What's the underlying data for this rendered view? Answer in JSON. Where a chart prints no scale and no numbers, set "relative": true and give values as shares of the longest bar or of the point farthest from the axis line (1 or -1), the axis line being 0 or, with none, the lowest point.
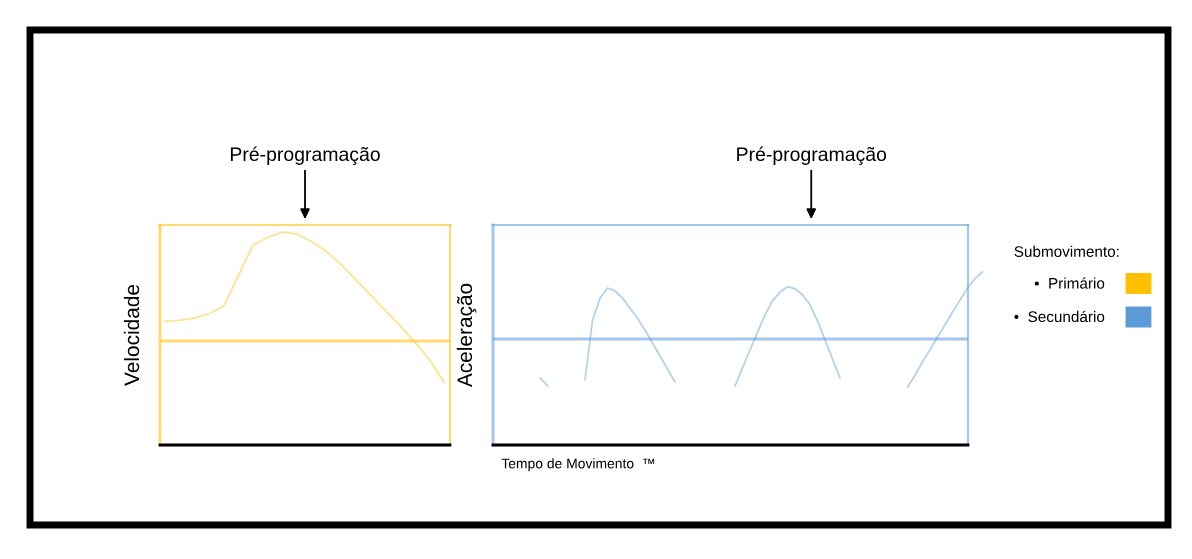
{
  "chart_data": [
    {
      "type": "line",
      "relative": true,
      "ylabel": "Velocidade",
      "annotations": [
        "Pré-programação"
      ],
      "legend": "right",
      "ref_lines": [
        {
          "axis": "y",
          "value": 0,
          "color": "#ffc000"
        }
      ],
      "categories": [
        null,
        null,
        null,
        null,
        null,
        null,
        null,
        null,
        null,
        null,
        null,
        null,
        null,
        null,
        null,
        null,
        null,
        null,
        null,
        null
      ],
      "series": [
        {
          "name": "•  Primário",
          "color": "#ffc000",
          "values": [
            0.18,
            0.19,
            0.21,
            0.25,
            0.32,
            0.6,
            0.88,
            0.95,
            1,
            0.98,
            0.91,
            0.82,
            0.7,
            0.56,
            0.42,
            0.28,
            0.14,
            -0.01,
            -0.17,
            -0.38
          ]
        }
      ]
    },
    {
      "type": "line",
      "relative": true,
      "ylabel": "Aceleração",
      "xlabel": "Tempo de Movimento  ™",
      "annotations": [
        "Pré-programação"
      ],
      "legend": "right",
      "legend_title": "Submovimento:",
      "ref_lines": [
        {
          "axis": "y",
          "value": 0,
          "color": "#5b9bd5"
        }
      ],
      "categories": [
        null,
        null,
        null,
        null,
        null,
        null,
        null,
        null,
        null,
        null,
        null,
        null,
        null,
        null,
        null,
        null,
        null,
        null,
        null,
        null,
        null,
        null,
        null,
        null,
        null,
        null,
        null,
        null,
        null,
        null,
        null,
        null,
        null,
        null,
        null,
        null,
        null,
        null,
        null,
        null,
        null,
        null,
        null,
        null,
        null,
        null,
        null,
        null,
        null,
        null,
        null,
        null,
        null,
        null,
        null,
        null,
        null,
        null,
        null,
        null,
        null
      ],
      "series": [
        {
          "color": "#5b9bd5",
          "values": [
            -0.58,
            -0.7,
            null,
            null,
            null,
            null,
            null,
            null,
            null,
            null,
            null,
            null,
            null,
            null,
            null,
            null,
            null,
            null,
            null,
            null,
            null,
            null,
            null,
            null,
            null,
            null,
            null,
            null,
            null,
            null,
            null,
            null,
            null,
            null,
            null,
            null,
            null,
            null,
            null,
            null,
            null,
            null,
            null,
            null,
            null,
            null,
            null,
            null,
            null,
            null,
            null,
            null,
            null,
            null,
            null,
            null,
            null,
            null,
            null,
            null,
            null
          ]
        },
        {
          "color": "#5b9bd5",
          "values": [
            null,
            null,
            null,
            null,
            null,
            null,
            -0.61,
            0.28,
            0.61,
            0.76,
            0.72,
            0.61,
            0.46,
            0.31,
            0.13,
            -0.06,
            -0.25,
            -0.45,
            -0.64,
            null,
            null,
            null,
            null,
            null,
            null,
            null,
            null,
            null,
            null,
            null,
            null,
            null,
            null,
            null,
            null,
            null,
            null,
            null,
            null,
            null,
            null,
            null,
            null,
            null,
            null,
            null,
            null,
            null,
            null,
            null,
            null,
            null,
            null,
            null,
            null,
            null,
            null,
            null,
            null,
            null,
            null
          ]
        },
        {
          "color": "#5b9bd5",
          "values": [
            null,
            null,
            null,
            null,
            null,
            null,
            null,
            null,
            null,
            null,
            null,
            null,
            null,
            null,
            null,
            null,
            null,
            null,
            null,
            null,
            null,
            null,
            null,
            null,
            null,
            null,
            -0.7,
            -0.43,
            -0.16,
            0.1,
            0.36,
            0.57,
            0.7,
            0.78,
            0.75,
            0.66,
            0.51,
            0.27,
            -0.01,
            -0.3,
            -0.58,
            null,
            null,
            null,
            null,
            null,
            null,
            null,
            null,
            null,
            null,
            null,
            null,
            null,
            null,
            null,
            null,
            null,
            null,
            null,
            null
          ]
        },
        {
          "name": "•  Secundário",
          "color": "#5b9bd5",
          "values": [
            null,
            null,
            null,
            null,
            null,
            null,
            null,
            null,
            null,
            null,
            null,
            null,
            null,
            null,
            null,
            null,
            null,
            null,
            null,
            null,
            null,
            null,
            null,
            null,
            null,
            null,
            null,
            null,
            null,
            null,
            null,
            null,
            null,
            null,
            null,
            null,
            null,
            null,
            null,
            null,
            null,
            null,
            null,
            null,
            null,
            null,
            null,
            null,
            null,
            -0.72,
            -0.54,
            -0.34,
            -0.16,
            0.03,
            0.21,
            0.4,
            0.58,
            0.76,
            0.9,
            1,
            null
          ]
        }
      ]
    }
  ]
}
